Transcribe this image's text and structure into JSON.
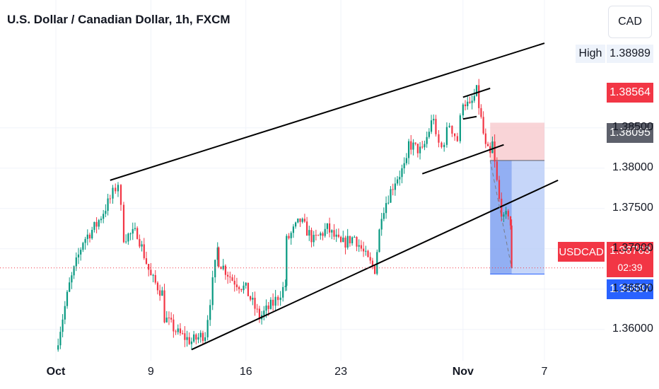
{
  "header": {
    "title": "U.S. Dollar / Canadian Dollar, 1h, FXCM",
    "currency": "CAD"
  },
  "badges": {
    "high_label": "High",
    "high_value": "1.38989",
    "stop_price": "1.38564",
    "entry_price": "1.38095",
    "symbol": "USDCAD",
    "current_price": "1.36763",
    "countdown": "02:39",
    "target_price": "1.36687"
  },
  "colors": {
    "up": "#089981",
    "down": "#f23645",
    "stop_zone": "#f7c6c9",
    "target_zone": "#b3c8f7",
    "target_zone_dark": "#6f94ee",
    "high_bg": "#eef3fb",
    "entry_badge": "#5d606b",
    "target_badge": "#2962ff"
  },
  "chart_data": {
    "type": "candlestick",
    "timeframe": "1h",
    "x_axis": {
      "start": "2023-10-02",
      "end": "2023-11-07",
      "tick_labels": [
        {
          "date": "2023-10-02",
          "label": "Oct",
          "bold": true
        },
        {
          "date": "2023-10-09",
          "label": "9",
          "bold": false
        },
        {
          "date": "2023-10-16",
          "label": "16",
          "bold": false
        },
        {
          "date": "2023-10-23",
          "label": "23",
          "bold": false
        },
        {
          "date": "2023-11-01",
          "label": "Nov",
          "bold": true
        },
        {
          "date": "2023-11-07",
          "label": "7",
          "bold": false
        }
      ]
    },
    "y_axis": {
      "ylim": [
        1.357,
        1.3998
      ],
      "ticks": [
        1.36,
        1.365,
        1.37,
        1.375,
        1.38,
        1.385
      ],
      "tick_labels": [
        "1.36000",
        "1.36500",
        "1.37000",
        "1.37500",
        "1.38000",
        "1.38500"
      ]
    },
    "price_path": [
      [
        "2023-10-02",
        1.3575
      ],
      [
        "2023-10-03",
        1.3655
      ],
      [
        "2023-10-04",
        1.371
      ],
      [
        "2023-10-05",
        1.373
      ],
      [
        "2023-10-06",
        1.3762
      ],
      [
        "2023-10-06T14:00",
        1.3782
      ],
      [
        "2023-10-07",
        1.3715
      ],
      [
        "2023-10-08",
        1.372
      ],
      [
        "2023-10-09",
        1.3665
      ],
      [
        "2023-10-09T20:00",
        1.3645
      ],
      [
        "2023-10-10",
        1.3615
      ],
      [
        "2023-10-11",
        1.3595
      ],
      [
        "2023-10-12",
        1.3585
      ],
      [
        "2023-10-13",
        1.3595
      ],
      [
        "2023-10-13T22:00",
        1.37
      ],
      [
        "2023-10-14",
        1.3685
      ],
      [
        "2023-10-15",
        1.3662
      ],
      [
        "2023-10-16",
        1.365
      ],
      [
        "2023-10-17",
        1.3615
      ],
      [
        "2023-10-18",
        1.3632
      ],
      [
        "2023-10-18T22:00",
        1.3655
      ],
      [
        "2023-10-19",
        1.371
      ],
      [
        "2023-10-20",
        1.3735
      ],
      [
        "2023-10-21",
        1.371
      ],
      [
        "2023-10-22",
        1.3725
      ],
      [
        "2023-10-23",
        1.3705
      ],
      [
        "2023-10-24",
        1.3715
      ],
      [
        "2023-10-25",
        1.3685
      ],
      [
        "2023-10-25T12:00",
        1.3675
      ],
      [
        "2023-10-26",
        1.3745
      ],
      [
        "2023-10-27",
        1.3785
      ],
      [
        "2023-10-27T20:00",
        1.3805
      ],
      [
        "2023-10-28",
        1.383
      ],
      [
        "2023-10-29",
        1.382
      ],
      [
        "2023-10-29T20:00",
        1.3865
      ],
      [
        "2023-10-30",
        1.3835
      ],
      [
        "2023-10-30T10:00",
        1.3825
      ],
      [
        "2023-10-31",
        1.3855
      ],
      [
        "2023-10-31T14:00",
        1.3835
      ],
      [
        "2023-11-01",
        1.3885
      ],
      [
        "2023-11-01T12:00",
        1.3875
      ],
      [
        "2023-11-02",
        1.3895
      ],
      [
        "2023-11-02T08:00",
        1.386
      ],
      [
        "2023-11-02T16:00",
        1.3825
      ],
      [
        "2023-11-03",
        1.3815
      ],
      [
        "2023-11-03T04:00",
        1.383
      ],
      [
        "2023-11-03T08:00",
        1.3805
      ],
      [
        "2023-11-03T16:00",
        1.376
      ],
      [
        "2023-11-04",
        1.3735
      ],
      [
        "2023-11-04T08:00",
        1.3745
      ],
      [
        "2023-11-04T12:00",
        1.373
      ],
      [
        "2023-11-04T14:00",
        1.3672
      ]
    ],
    "trendlines": [
      {
        "from": [
          "2023-10-06",
          1.3785
        ],
        "to": [
          "2023-11-07",
          1.3955
        ]
      },
      {
        "from": [
          "2023-10-12",
          1.3575
        ],
        "to": [
          "2023-11-08",
          1.3785
        ]
      },
      {
        "from": [
          "2023-10-29",
          1.3793
        ],
        "to": [
          "2023-11-04",
          1.3829
        ]
      },
      {
        "from": [
          "2023-11-01",
          1.3888
        ],
        "to": [
          "2023-11-03",
          1.3899
        ]
      },
      {
        "from": [
          "2023-11-01",
          1.3861
        ],
        "to": [
          "2023-11-02",
          1.3864
        ]
      }
    ],
    "position": {
      "side": "short",
      "entry": 1.38095,
      "stop": 1.38564,
      "target": 1.36687,
      "from": "2023-11-03",
      "to": "2023-11-07",
      "progress_until": "2023-11-04T14:00"
    },
    "current_price": 1.36763
  }
}
